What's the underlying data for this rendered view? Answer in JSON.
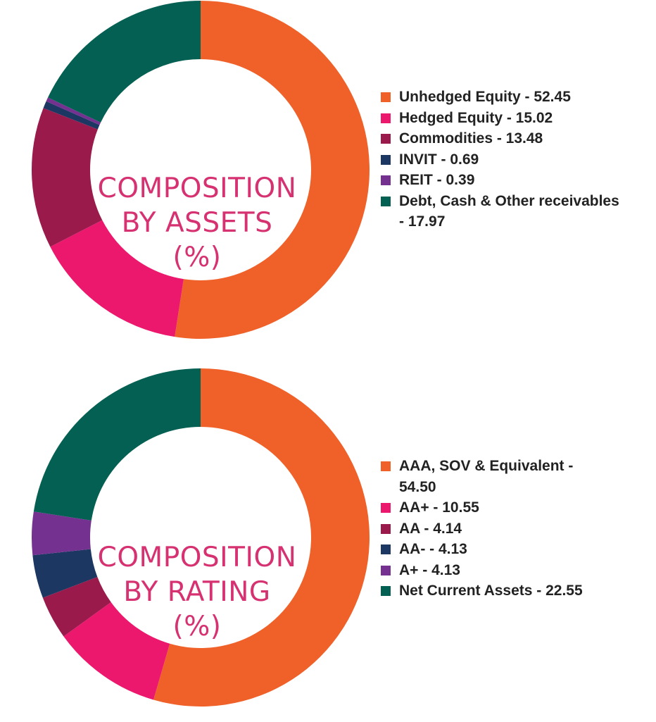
{
  "colors": {
    "orange": "#f0612a",
    "pink": "#ec186d",
    "maroon": "#9a1a4c",
    "navy": "#1d3763",
    "purple": "#74318f",
    "green": "#046052",
    "title": "#d63272"
  },
  "chart_data": [
    {
      "type": "donut",
      "title_lines": [
        "COMPOSITION",
        "BY ASSETS",
        "(%)"
      ],
      "categories": [
        "Unhedged Equity",
        "Hedged Equity",
        "Commodities",
        "INVIT",
        "REIT",
        "Debt, Cash & Other receivables"
      ],
      "values": [
        52.45,
        15.02,
        13.48,
        0.69,
        0.39,
        17.97
      ],
      "colors": [
        "#f0612a",
        "#ec186d",
        "#9a1a4c",
        "#1d3763",
        "#74318f",
        "#046052"
      ],
      "legend": [
        {
          "label": "Unhedged Equity - 52.45"
        },
        {
          "label": "Hedged Equity - 15.02"
        },
        {
          "label": "Commodities - 13.48"
        },
        {
          "label": "INVIT - 0.69"
        },
        {
          "label": "REIT - 0.39"
        },
        {
          "label": "Debt, Cash & Other receivables\n- 17.97"
        }
      ],
      "legend_position": "right"
    },
    {
      "type": "donut",
      "title_lines": [
        "COMPOSITION",
        "BY RATING",
        "(%)"
      ],
      "categories": [
        "AAA, SOV & Equivalent",
        "AA+",
        "AA",
        "AA-",
        "A+",
        "Net Current Assets"
      ],
      "values": [
        54.5,
        10.55,
        4.14,
        4.13,
        4.13,
        22.55
      ],
      "colors": [
        "#f0612a",
        "#ec186d",
        "#9a1a4c",
        "#1d3763",
        "#74318f",
        "#046052"
      ],
      "legend": [
        {
          "label": "AAA, SOV & Equivalent -\n54.50"
        },
        {
          "label": "AA+ - 10.55"
        },
        {
          "label": "AA - 4.14"
        },
        {
          "label": "AA- - 4.13"
        },
        {
          "label": "A+ - 4.13"
        },
        {
          "label": "Net Current Assets - 22.55"
        }
      ],
      "legend_position": "right"
    }
  ]
}
